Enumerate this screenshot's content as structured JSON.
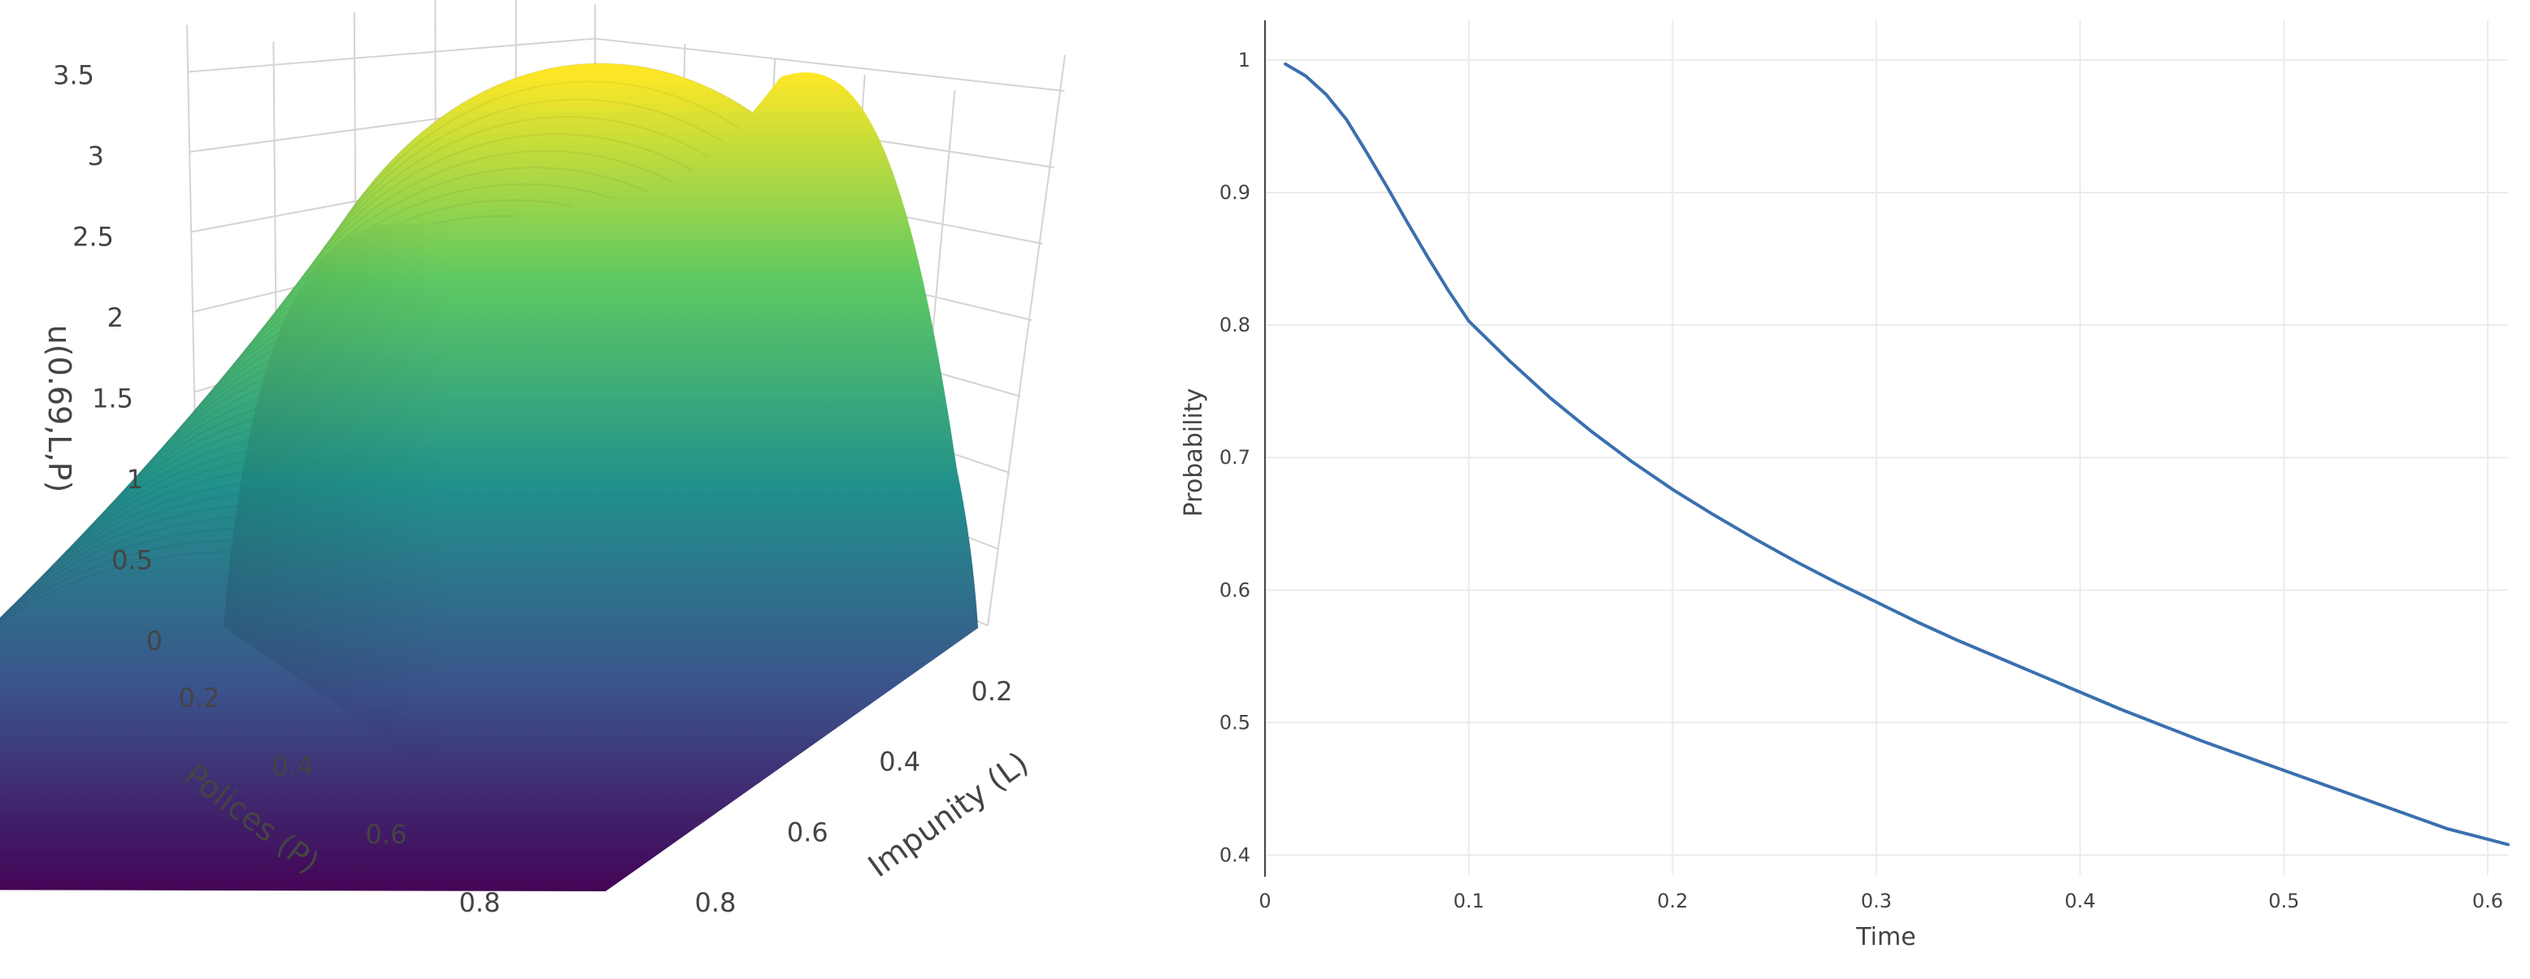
{
  "chart_data": [
    {
      "type": "surface",
      "colorscale": "viridis",
      "colors": [
        "#440154",
        "#3b528b",
        "#21918c",
        "#5ec962",
        "#fde725"
      ],
      "xlabel": "Polices (P)",
      "ylabel": "Impunity (L)",
      "zlabel": "u(0.69,L,P)",
      "x_ticks": [
        "0.2",
        "0.4",
        "0.6",
        "0.8"
      ],
      "y_ticks": [
        "0.2",
        "0.4",
        "0.6",
        "0.8"
      ],
      "z_ticks": [
        "0",
        "0.5",
        "1",
        "1.5",
        "2",
        "2.5",
        "3",
        "3.5"
      ],
      "xlim": [
        0,
        1
      ],
      "ylim": [
        0,
        1
      ],
      "zlim": [
        0,
        3.6
      ],
      "grid": true,
      "peak_value": 3.6,
      "saddle_value": 2.9
    },
    {
      "type": "line",
      "xlabel": "Time",
      "ylabel": "Probability",
      "x_ticks": [
        "0",
        "0.1",
        "0.2",
        "0.3",
        "0.4",
        "0.5",
        "0.6"
      ],
      "y_ticks": [
        "0.4",
        "0.5",
        "0.6",
        "0.7",
        "0.8",
        "0.9",
        "1"
      ],
      "xlim": [
        0,
        0.61
      ],
      "ylim": [
        0.385,
        1.03
      ],
      "grid": true,
      "line_color": "#3a70ae",
      "series": [
        {
          "x": [
            0.01,
            0.02,
            0.03,
            0.04,
            0.05,
            0.06,
            0.07,
            0.08,
            0.09,
            0.1,
            0.12,
            0.14,
            0.16,
            0.18,
            0.2,
            0.22,
            0.24,
            0.26,
            0.28,
            0.3,
            0.32,
            0.34,
            0.36,
            0.38,
            0.4,
            0.42,
            0.44,
            0.46,
            0.48,
            0.5,
            0.52,
            0.54,
            0.56,
            0.58,
            0.61
          ],
          "y": [
            0.997,
            0.988,
            0.974,
            0.955,
            0.93,
            0.904,
            0.877,
            0.851,
            0.826,
            0.803,
            0.773,
            0.745,
            0.72,
            0.697,
            0.676,
            0.657,
            0.639,
            0.622,
            0.606,
            0.591,
            0.576,
            0.562,
            0.549,
            0.536,
            0.523,
            0.51,
            0.498,
            0.486,
            0.475,
            0.464,
            0.453,
            0.442,
            0.431,
            0.42,
            0.408
          ]
        }
      ]
    }
  ]
}
